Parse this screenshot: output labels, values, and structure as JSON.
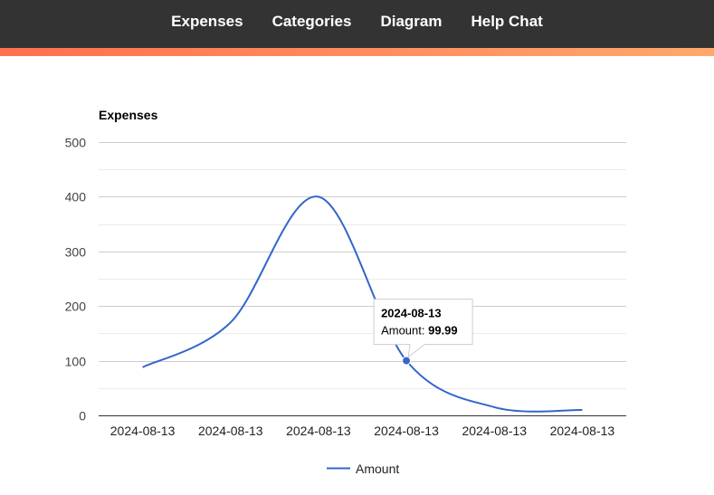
{
  "nav": {
    "items": [
      {
        "label": "Expenses"
      },
      {
        "label": "Categories"
      },
      {
        "label": "Diagram"
      },
      {
        "label": "Help Chat"
      }
    ]
  },
  "colors": {
    "nav_bg": "#333333",
    "accent_start": "#ff6f4e",
    "accent_end": "#ffa86c",
    "series": "#3366cc"
  },
  "chart_data": {
    "type": "line",
    "title": "Expenses",
    "x": [
      "2024-08-13",
      "2024-08-13",
      "2024-08-13",
      "2024-08-13",
      "2024-08-13",
      "2024-08-13"
    ],
    "series": [
      {
        "name": "Amount",
        "values": [
          88,
          170,
          400,
          99.99,
          15,
          10
        ]
      }
    ],
    "ylim": [
      0,
      500
    ],
    "yticks": [
      0,
      100,
      200,
      300,
      400,
      500
    ],
    "grid": true,
    "legend": "bottom",
    "tooltip": {
      "point_index": 3,
      "title": "2024-08-13",
      "label": "Amount: ",
      "value": "99.99"
    }
  }
}
